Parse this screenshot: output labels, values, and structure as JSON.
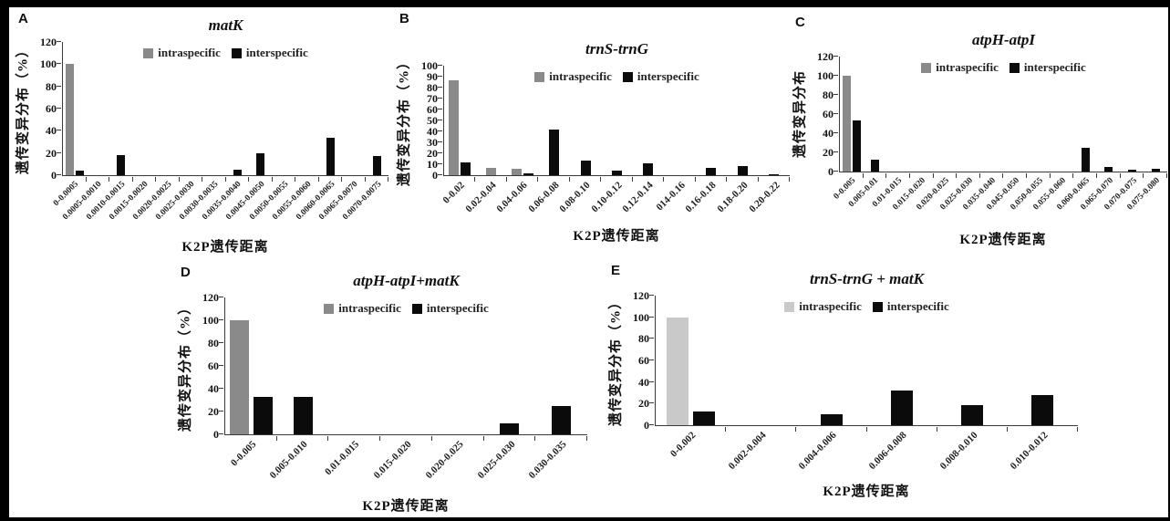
{
  "figure": {
    "panel_letters": [
      "A",
      "B",
      "C",
      "D",
      "E"
    ]
  },
  "chart_data": [
    {
      "type": "bar",
      "panel": "A",
      "title": "matK",
      "ylabel": "遗传变异分布（%）",
      "xlabel": "K2P遗传距离",
      "ylim": [
        0,
        120
      ],
      "ytick_step": 20,
      "grid": false,
      "legend_position": "top-center",
      "categories": [
        "0-0.0005",
        "0.0005-0.0010",
        "0.0010-0.0015",
        "0.0015-0.0020",
        "0.0020-0.0025",
        "0.0025-0.0030",
        "0.0030-0.0035",
        "0.0035-0.0040",
        "0.0045-0.0050",
        "0.0050-0.0055",
        "0.0055-0.0060",
        "0.0060-0.0065",
        "0.0065-0.0070",
        "0.0070-0.0075"
      ],
      "series": [
        {
          "name": "intraspecific",
          "color": "#8a8a8a",
          "values": [
            100,
            0,
            0,
            0,
            0,
            0,
            0,
            0,
            0,
            0,
            0,
            0,
            0,
            0
          ]
        },
        {
          "name": "interspecific",
          "color": "#0b0b0b",
          "values": [
            4,
            0,
            18,
            0,
            0,
            0,
            0,
            5,
            20,
            0,
            0,
            34,
            0,
            17
          ]
        }
      ]
    },
    {
      "type": "bar",
      "panel": "B",
      "title": "trnS-trnG",
      "ylabel": "遗传变异分布（%）",
      "xlabel": "K2P遗传距离",
      "ylim": [
        0,
        100
      ],
      "ytick_step": 10,
      "grid": false,
      "legend_position": "top-center",
      "categories": [
        "0-0.02",
        "0.02-0.04",
        "0.04-0.06",
        "0.06-0.08",
        "0.08-0.10",
        "0.10-0.12",
        "0.12-0.14",
        "014-0.16",
        "0.16-0.18",
        "0.18-0.20",
        "0.20-0.22"
      ],
      "series": [
        {
          "name": "intraspecific",
          "color": "#8a8a8a",
          "values": [
            87,
            7,
            5.5,
            0,
            0,
            0,
            0,
            0,
            0,
            0,
            0
          ]
        },
        {
          "name": "interspecific",
          "color": "#0b0b0b",
          "values": [
            11.5,
            0,
            2,
            41.5,
            13,
            4,
            10.5,
            0,
            7,
            8.5,
            1
          ]
        }
      ]
    },
    {
      "type": "bar",
      "panel": "C",
      "title": "atpH-atpI",
      "ylabel": "遗传变异分布",
      "xlabel": "K2P遗传距离",
      "ylim": [
        0,
        120
      ],
      "ytick_step": 20,
      "grid": false,
      "legend_position": "top-center",
      "categories": [
        "0-0.005",
        "0.005-0.01",
        "0.01-0.015",
        "0.015-0.020",
        "0.020-0.025",
        "0.025-0.030",
        "0.035-0.040",
        "0.045-0.050",
        "0.050-0.055",
        "0.055-0.060",
        "0.060-0.065",
        "0.065-0.070",
        "0.070-0.075",
        "0.075-0.080"
      ],
      "series": [
        {
          "name": "intraspecific",
          "color": "#8a8a8a",
          "values": [
            100,
            0,
            0,
            0,
            0,
            0,
            0,
            0,
            0,
            0,
            0,
            0,
            0,
            0
          ]
        },
        {
          "name": "interspecific",
          "color": "#0b0b0b",
          "values": [
            53,
            12,
            0,
            0,
            0,
            0,
            0,
            0,
            0,
            0,
            25,
            5,
            2,
            3
          ]
        }
      ]
    },
    {
      "type": "bar",
      "panel": "D",
      "title": "atpH-atpI+matK",
      "ylabel": "遗传变异分布（%）",
      "xlabel": "K2P遗传距离",
      "ylim": [
        0,
        120
      ],
      "ytick_step": 20,
      "grid": false,
      "legend_position": "top-center",
      "categories": [
        "0-0.005",
        "0.005-0.010",
        "0.01-0.015",
        "0.015-0.020",
        "0.020-0.025",
        "0.025-0.030",
        "0.030-0.035"
      ],
      "series": [
        {
          "name": "intraspecific",
          "color": "#8a8a8a",
          "values": [
            100,
            0,
            0,
            0,
            0,
            0,
            0
          ]
        },
        {
          "name": "interspecific",
          "color": "#0b0b0b",
          "values": [
            33,
            32.5,
            0,
            0,
            0,
            10,
            25
          ]
        }
      ]
    },
    {
      "type": "bar",
      "panel": "E",
      "title": "trnS-trnG + matK",
      "ylabel": "遗传变异分布（%）",
      "xlabel": "K2P遗传距离",
      "ylim": [
        0,
        120
      ],
      "ytick_step": 20,
      "grid": false,
      "legend_position": "top-center",
      "categories": [
        "0-0.002",
        "0.002-0.004",
        "0.004-0.006",
        "0.006-0.008",
        "0.008-0.010",
        "0.010-0.012"
      ],
      "series": [
        {
          "name": "intraspecific",
          "color": "#c9c9c9",
          "values": [
            100,
            0,
            0,
            0,
            0,
            0
          ]
        },
        {
          "name": "interspecific",
          "color": "#0b0b0b",
          "values": [
            12.5,
            0,
            10.5,
            32,
            19,
            27.5
          ]
        }
      ]
    }
  ]
}
